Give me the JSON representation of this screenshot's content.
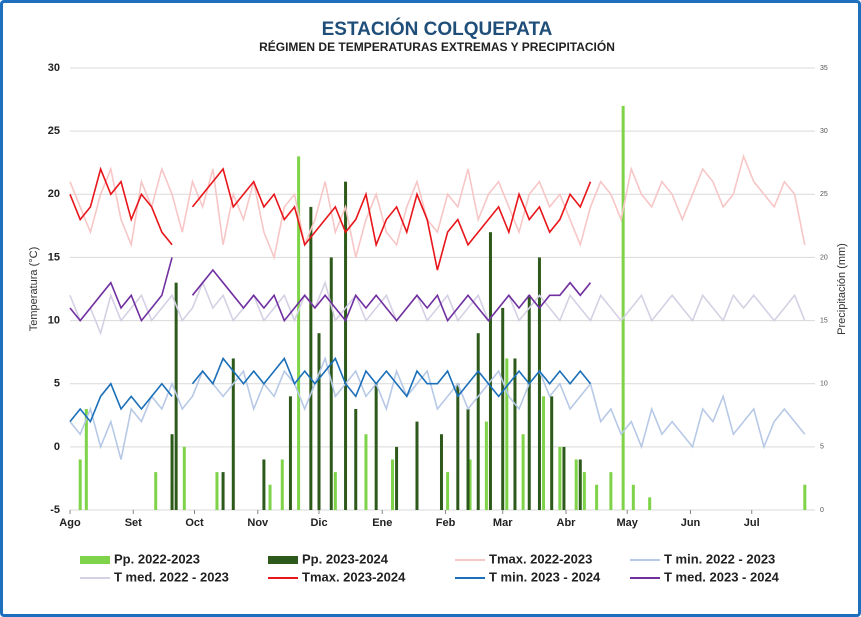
{
  "chart_data": {
    "type": "combo",
    "title": "ESTACIÓN COLQUEPATA",
    "subtitle": "RÉGIMEN DE TEMPERATURAS EXTREMAS Y PRECIPITACIÓN",
    "y_label": "Temperatura (°C)",
    "y2_label": "Precipitación (mm)",
    "xlim": [
      0,
      365
    ],
    "xticks": [
      {
        "value": 0,
        "label": "Ago"
      },
      {
        "value": 31,
        "label": "Set"
      },
      {
        "value": 61,
        "label": "Oct"
      },
      {
        "value": 92,
        "label": "Nov"
      },
      {
        "value": 122,
        "label": "Dic"
      },
      {
        "value": 153,
        "label": "Ene"
      },
      {
        "value": 184,
        "label": "Feb"
      },
      {
        "value": 212,
        "label": "Mar"
      },
      {
        "value": 243,
        "label": "Abr"
      },
      {
        "value": 273,
        "label": "May"
      },
      {
        "value": 304,
        "label": "Jun"
      },
      {
        "value": 334,
        "label": "Jul"
      }
    ],
    "ylim": [
      -5,
      30
    ],
    "yticks": [
      -5,
      0,
      5,
      10,
      15,
      20,
      25,
      30
    ],
    "y2lim": [
      0,
      35
    ],
    "y2ticks": [
      0,
      5,
      10,
      15,
      20,
      25,
      30,
      35
    ],
    "grid": true,
    "x": [
      0,
      5,
      10,
      15,
      20,
      25,
      30,
      35,
      40,
      45,
      50,
      55,
      60,
      65,
      70,
      75,
      80,
      85,
      90,
      95,
      100,
      105,
      110,
      115,
      120,
      125,
      130,
      135,
      140,
      145,
      150,
      155,
      160,
      165,
      170,
      175,
      180,
      185,
      190,
      195,
      200,
      205,
      210,
      215,
      220,
      225,
      230,
      235,
      240,
      245,
      250,
      255,
      260,
      265,
      270,
      275,
      280,
      285,
      290,
      295,
      300,
      305,
      310,
      315,
      320,
      325,
      330,
      335,
      340,
      345,
      350,
      355,
      360
    ],
    "series": [
      {
        "name": "Pp. 2022-2023",
        "type": "bar",
        "axis": "y2",
        "color": "#7ed348",
        "x": [
          5,
          8,
          42,
          50,
          56,
          72,
          98,
          104,
          112,
          130,
          145,
          158,
          170,
          185,
          196,
          204,
          214,
          222,
          232,
          240,
          248,
          252,
          258,
          265,
          271,
          276,
          284,
          360
        ],
        "values": [
          4,
          8,
          3,
          2,
          5,
          3,
          2,
          4,
          28,
          3,
          6,
          4,
          5,
          3,
          4,
          7,
          12,
          6,
          9,
          5,
          4,
          3,
          2,
          3,
          32,
          2,
          1,
          2
        ]
      },
      {
        "name": "Pp. 2023-2024",
        "type": "bar",
        "axis": "y2",
        "color": "#2d5a1b",
        "x": [
          50,
          52,
          75,
          80,
          95,
          108,
          118,
          122,
          128,
          135,
          140,
          150,
          160,
          170,
          182,
          190,
          195,
          200,
          206,
          212,
          218,
          225,
          230,
          236,
          242,
          250
        ],
        "values": [
          6,
          18,
          3,
          12,
          4,
          9,
          24,
          14,
          20,
          26,
          8,
          10,
          5,
          7,
          6,
          10,
          8,
          14,
          22,
          16,
          12,
          17,
          20,
          9,
          5,
          4
        ]
      },
      {
        "name": "Tmax. 2022-2023",
        "type": "line",
        "color": "#f7c6c6",
        "values": [
          21,
          19,
          17,
          20,
          22,
          18,
          16,
          21,
          19,
          22,
          20,
          17,
          21,
          19,
          22,
          16,
          20,
          18,
          21,
          17,
          15,
          19,
          20,
          16,
          18,
          21,
          17,
          19,
          15,
          18,
          20,
          17,
          16,
          19,
          21,
          18,
          17,
          20,
          19,
          22,
          18,
          20,
          21,
          19,
          17,
          20,
          21,
          19,
          20,
          18,
          16,
          19,
          21,
          20,
          18,
          22,
          20,
          19,
          21,
          20,
          18,
          20,
          22,
          21,
          19,
          20,
          23,
          21,
          20,
          19,
          21,
          20,
          16
        ]
      },
      {
        "name": "T min. 2022 - 2023",
        "type": "line",
        "color": "#b7c9e6",
        "values": [
          2,
          1,
          3,
          0,
          2,
          -1,
          3,
          2,
          4,
          3,
          5,
          3,
          4,
          6,
          5,
          4,
          5,
          6,
          3,
          5,
          4,
          6,
          5,
          3,
          5,
          7,
          4,
          5,
          6,
          4,
          5,
          3,
          6,
          4,
          5,
          6,
          3,
          4,
          5,
          3,
          4,
          5,
          6,
          4,
          3,
          5,
          6,
          4,
          5,
          3,
          4,
          5,
          2,
          3,
          1,
          2,
          0,
          3,
          1,
          2,
          1,
          0,
          3,
          2,
          4,
          1,
          2,
          3,
          0,
          2,
          3,
          2,
          1
        ]
      },
      {
        "name": "T med. 2022 - 2023",
        "type": "line",
        "color": "#d6d0e4",
        "values": [
          12,
          10,
          11,
          9,
          12,
          10,
          11,
          12,
          10,
          11,
          12,
          10,
          11,
          13,
          11,
          12,
          10,
          11,
          12,
          10,
          11,
          12,
          10,
          12,
          11,
          13,
          10,
          11,
          12,
          10,
          11,
          12,
          10,
          11,
          12,
          10,
          11,
          12,
          10,
          11,
          12,
          10,
          11,
          12,
          10,
          11,
          12,
          11,
          10,
          12,
          11,
          10,
          12,
          11,
          10,
          11,
          12,
          10,
          11,
          12,
          11,
          10,
          12,
          11,
          10,
          12,
          11,
          12,
          11,
          10,
          11,
          12,
          10
        ]
      },
      {
        "name": "Tmax. 2023-2024",
        "type": "line",
        "color": "#e8161b",
        "values": [
          20,
          18,
          19,
          22,
          20,
          21,
          18,
          20,
          19,
          17,
          16,
          null,
          19,
          20,
          21,
          22,
          19,
          20,
          21,
          19,
          20,
          18,
          19,
          16,
          17,
          18,
          19,
          17,
          18,
          20,
          16,
          18,
          19,
          17,
          20,
          18,
          14,
          17,
          18,
          16,
          17,
          18,
          19,
          17,
          20,
          18,
          19,
          17,
          18,
          20,
          19,
          21,
          null,
          null,
          null,
          null,
          null,
          null,
          null,
          null,
          null,
          null,
          null,
          null,
          null,
          null,
          null,
          null,
          null,
          null,
          null,
          null,
          null
        ]
      },
      {
        "name": "T min. 2023 - 2024",
        "type": "line",
        "color": "#1a6fb8",
        "values": [
          2,
          3,
          2,
          4,
          5,
          3,
          4,
          3,
          4,
          5,
          4,
          null,
          5,
          6,
          5,
          7,
          6,
          5,
          6,
          5,
          6,
          7,
          5,
          6,
          5,
          6,
          7,
          5,
          4,
          6,
          5,
          6,
          5,
          4,
          6,
          5,
          5,
          6,
          4,
          5,
          6,
          5,
          4,
          5,
          6,
          5,
          6,
          5,
          6,
          5,
          6,
          5,
          null,
          null,
          null,
          null,
          null,
          null,
          null,
          null,
          null,
          null,
          null,
          null,
          null,
          null,
          null,
          null,
          null,
          null,
          null,
          null,
          null
        ]
      },
      {
        "name": "T med. 2023 - 2024",
        "type": "line",
        "color": "#7030a0",
        "values": [
          11,
          10,
          11,
          12,
          13,
          11,
          12,
          10,
          11,
          12,
          15,
          null,
          12,
          13,
          14,
          13,
          12,
          11,
          12,
          11,
          12,
          10,
          11,
          12,
          11,
          12,
          11,
          10,
          12,
          11,
          12,
          11,
          10,
          11,
          12,
          11,
          12,
          10,
          11,
          12,
          11,
          10,
          11,
          12,
          11,
          12,
          11,
          12,
          12,
          13,
          12,
          13,
          null,
          null,
          null,
          null,
          null,
          null,
          null,
          null,
          null,
          null,
          null,
          null,
          null,
          null,
          null,
          null,
          null,
          null,
          null,
          null,
          null
        ]
      }
    ]
  }
}
